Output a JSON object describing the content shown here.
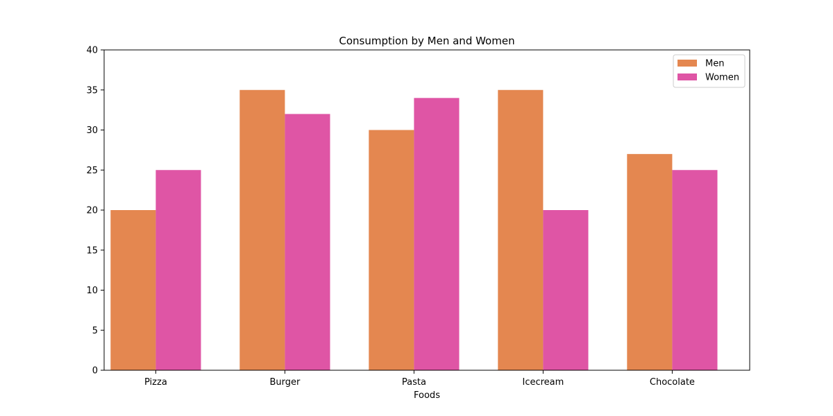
{
  "chart_data": {
    "type": "bar",
    "title": "Consumption by Men and Women",
    "xlabel": "Foods",
    "ylabel": "",
    "categories": [
      "Pizza",
      "Burger",
      "Pasta",
      "Icecream",
      "Chocolate"
    ],
    "series": [
      {
        "name": "Men",
        "values": [
          20,
          35,
          30,
          35,
          27
        ],
        "color": "#e48750"
      },
      {
        "name": "Women",
        "values": [
          25,
          32,
          34,
          20,
          25
        ],
        "color": "#df55a5"
      }
    ],
    "ylim": [
      0,
      40
    ],
    "yticks": [
      0,
      5,
      10,
      15,
      20,
      25,
      30,
      35,
      40
    ],
    "grid": false,
    "legend_position": "top-right"
  }
}
